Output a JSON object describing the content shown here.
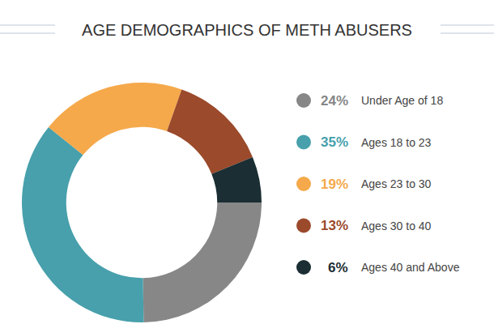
{
  "chart_data": {
    "type": "donut",
    "title": "AGE DEMOGRAPHICS OF METH ABUSERS",
    "categories": [
      "Under Age of 18",
      "Ages 18 to 23",
      "Ages 23 to 30",
      "Ages 30 to 40",
      "Ages 40 and Above"
    ],
    "values": [
      24,
      35,
      19,
      13,
      6
    ],
    "value_labels": [
      "24%",
      "35%",
      "19%",
      "13%",
      "6%"
    ],
    "colors": [
      "#878787",
      "#47a0ac",
      "#f5a94b",
      "#9b4a2c",
      "#1a2e33"
    ],
    "legend": "right",
    "data_labels": false
  }
}
